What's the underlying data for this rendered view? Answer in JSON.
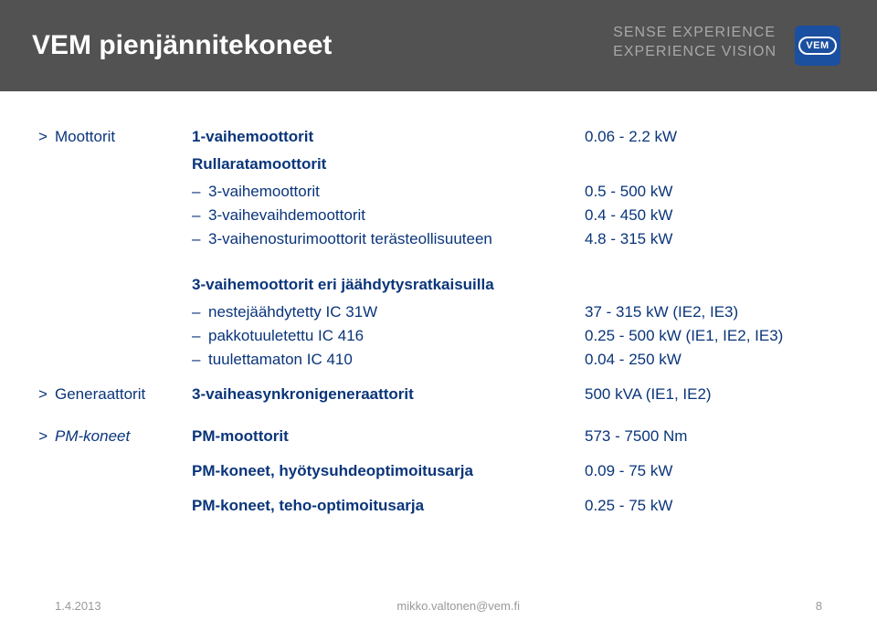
{
  "header": {
    "title": "VEM pienjännitekoneet",
    "tagline1": "SENSE EXPERIENCE",
    "tagline2": "EXPERIENCE VISION",
    "logo": "VEM"
  },
  "sections": {
    "moottorit": {
      "category": "Moottorit",
      "main_label": "1-vaihemoottorit",
      "main_value": "0.06 - 2.2 kW",
      "subhead": "Rullaratamoottorit",
      "items": [
        {
          "label": "3-vaihemoottorit",
          "value": "0.5 - 500 kW"
        },
        {
          "label": "3-vaihevaihdemoottorit",
          "value": "0.4 - 450 kW"
        },
        {
          "label": "3-vaihenosturimoottorit terästeollisuuteen",
          "value": "4.8 - 315 kW"
        }
      ],
      "subhead2": "3-vaihemoottorit eri jäähdytysratkaisuilla",
      "items2": [
        {
          "label": "nestejäähdytetty IC 31W",
          "value": "37 - 315 kW (IE2, IE3)"
        },
        {
          "label": "pakkotuuletettu IC 416",
          "value": "0.25 - 500 kW (IE1, IE2, IE3)"
        },
        {
          "label": "tuulettamaton IC 410",
          "value": "0.04 - 250 kW"
        }
      ]
    },
    "generaattorit": {
      "category": "Generaattorit",
      "label": "3-vaiheasynkronigeneraattorit",
      "value": "500 kVA (IE1, IE2)"
    },
    "pmkoneet": {
      "category": "PM-koneet",
      "main_label": "PM-moottorit",
      "main_value": "573 - 7500 Nm",
      "row2_label": "PM-koneet, hyötysuhdeoptimoitusarja",
      "row2_value": "0.09 - 75 kW",
      "row3_label": "PM-koneet, teho-optimoitusarja",
      "row3_value": "0.25 - 75 kW"
    }
  },
  "footer": {
    "date": "1.4.2013",
    "email": "mikko.valtonen@vem.fi",
    "page": "8"
  },
  "colors": {
    "header_bg": "#525252",
    "brand_blue": "#0a357a",
    "logo_bg": "#1b4fa0",
    "footer_text": "#999999"
  }
}
